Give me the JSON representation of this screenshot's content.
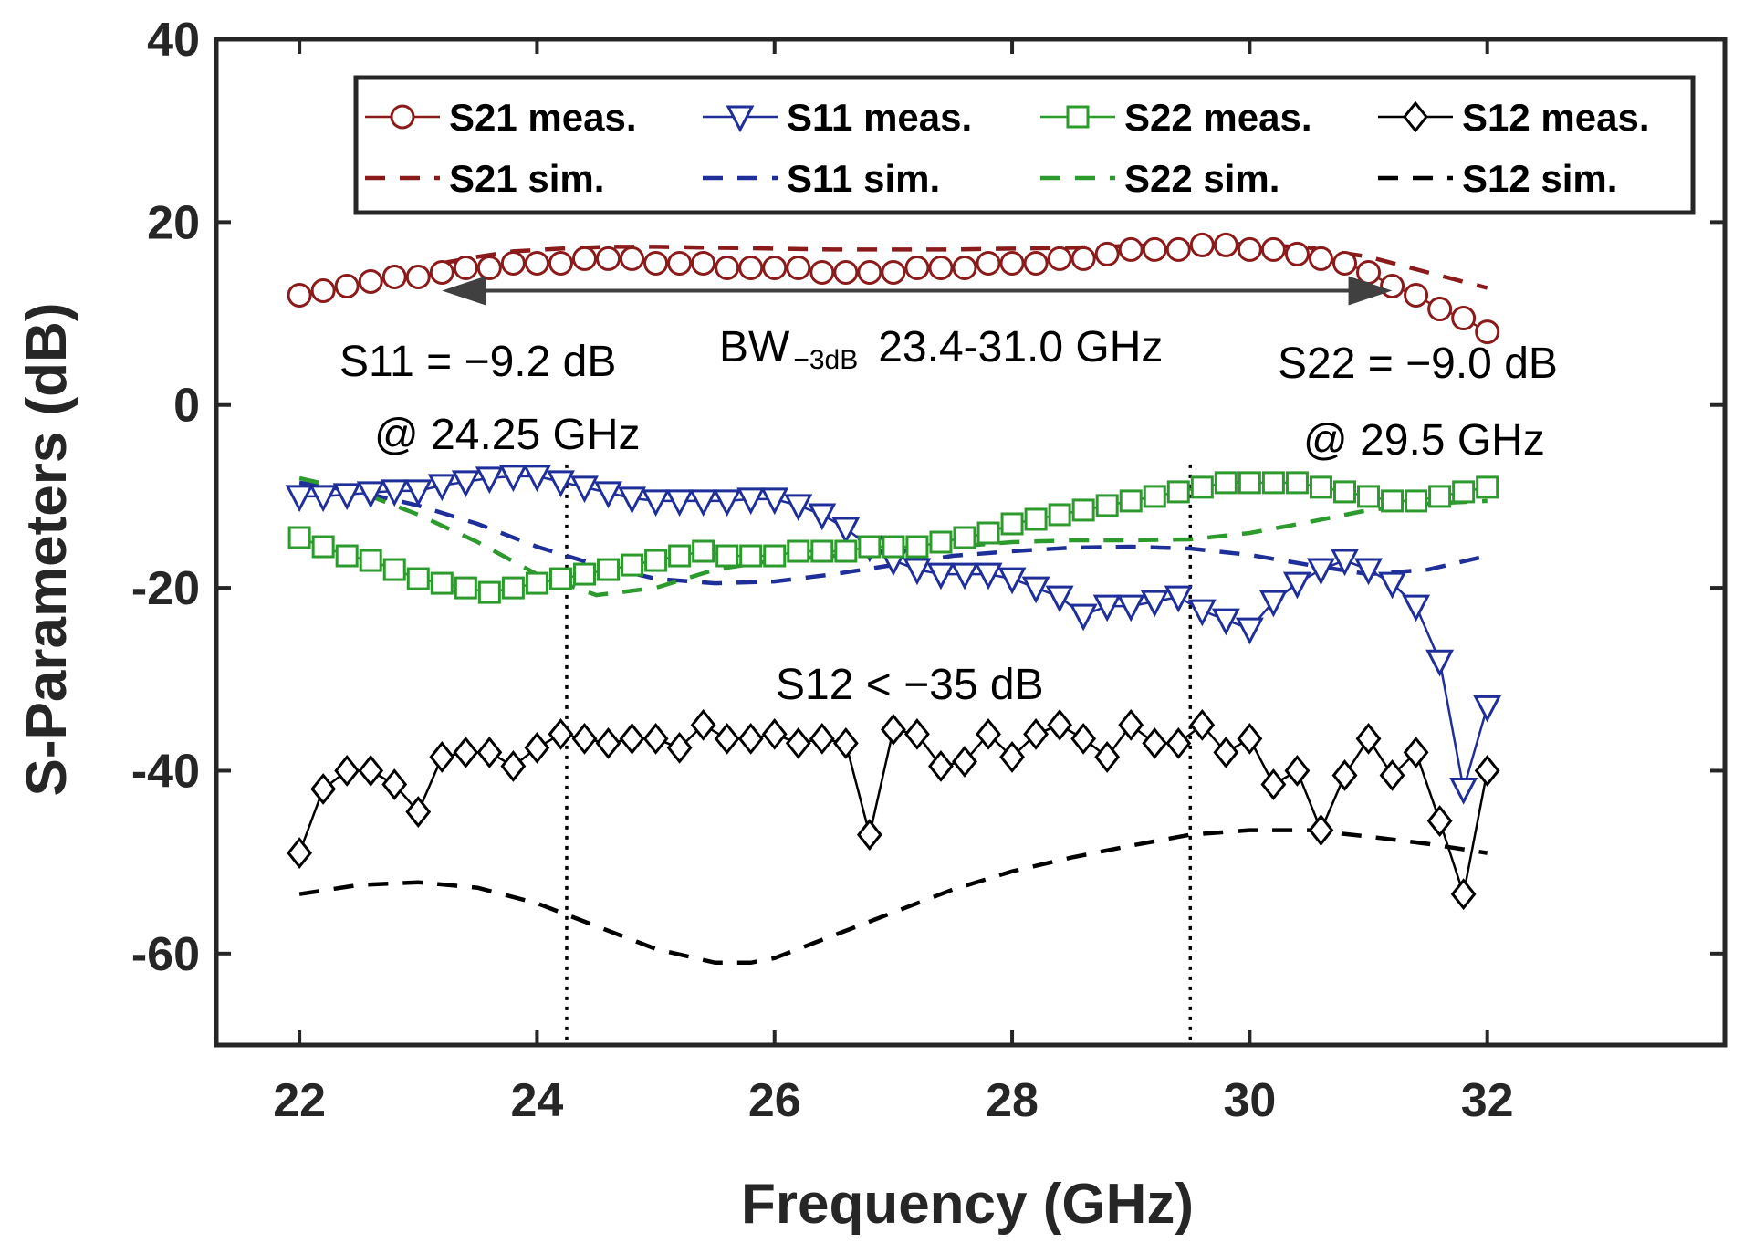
{
  "chart_data": {
    "type": "line",
    "title": "",
    "xlabel": "Frequency (GHz)",
    "ylabel": "S-Parameters (dB)",
    "xlim": [
      21.3,
      34.0
    ],
    "ylim": [
      -70,
      40
    ],
    "xticks": [
      22,
      24,
      26,
      28,
      30,
      32
    ],
    "yticks": [
      40,
      20,
      0,
      -20,
      -40,
      -60
    ],
    "xtick_labels": [
      "22",
      "24",
      "26",
      "28",
      "30",
      "32"
    ],
    "ytick_labels": [
      "40",
      "20",
      "0",
      "-20",
      "-40",
      "-60"
    ],
    "grid": false,
    "legend_position": "top",
    "series": [
      {
        "name": "S21 meas.",
        "style": "solid",
        "marker": "circle",
        "color": "#8b1a1a",
        "x": [
          22.0,
          22.2,
          22.4,
          22.6,
          22.8,
          23.0,
          23.2,
          23.4,
          23.6,
          23.8,
          24.0,
          24.2,
          24.4,
          24.6,
          24.8,
          25.0,
          25.2,
          25.4,
          25.6,
          25.8,
          26.0,
          26.2,
          26.4,
          26.6,
          26.8,
          27.0,
          27.2,
          27.4,
          27.6,
          27.8,
          28.0,
          28.2,
          28.4,
          28.6,
          28.8,
          29.0,
          29.2,
          29.4,
          29.6,
          29.8,
          30.0,
          30.2,
          30.4,
          30.6,
          30.8,
          31.0,
          31.2,
          31.4,
          31.6,
          31.8,
          32.0
        ],
        "y": [
          12.0,
          12.5,
          13.0,
          13.5,
          14.0,
          14.0,
          14.5,
          15.0,
          15.0,
          15.5,
          15.5,
          15.5,
          16.0,
          16.0,
          16.0,
          15.5,
          15.5,
          15.5,
          15.0,
          15.0,
          15.0,
          15.0,
          14.5,
          14.5,
          14.5,
          14.5,
          15.0,
          15.0,
          15.0,
          15.5,
          15.5,
          15.5,
          16.0,
          16.0,
          16.5,
          17.0,
          17.0,
          17.0,
          17.5,
          17.5,
          17.0,
          17.0,
          16.5,
          16.0,
          15.5,
          14.5,
          13.0,
          12.0,
          10.5,
          9.5,
          8.0
        ]
      },
      {
        "name": "S11 meas.",
        "style": "solid",
        "marker": "triangle-down",
        "color": "#1f2f9a",
        "x": [
          22.0,
          22.2,
          22.4,
          22.6,
          22.8,
          23.0,
          23.2,
          23.4,
          23.6,
          23.8,
          24.0,
          24.2,
          24.4,
          24.6,
          24.8,
          25.0,
          25.2,
          25.4,
          25.6,
          25.8,
          26.0,
          26.2,
          26.4,
          26.6,
          26.8,
          27.0,
          27.2,
          27.4,
          27.6,
          27.8,
          28.0,
          28.2,
          28.4,
          28.6,
          28.8,
          29.0,
          29.2,
          29.4,
          29.6,
          29.8,
          30.0,
          30.2,
          30.4,
          30.6,
          30.8,
          31.0,
          31.2,
          31.4,
          31.6,
          31.8,
          32.0
        ],
        "y": [
          -10.0,
          -10.0,
          -9.8,
          -9.6,
          -9.4,
          -9.4,
          -8.8,
          -8.4,
          -8.0,
          -7.8,
          -7.8,
          -8.4,
          -9.0,
          -9.6,
          -10.2,
          -10.5,
          -10.5,
          -10.5,
          -10.5,
          -10.3,
          -10.3,
          -11.0,
          -12.0,
          -13.5,
          -15.5,
          -17.0,
          -18.0,
          -18.5,
          -18.5,
          -18.5,
          -19.0,
          -20.0,
          -21.0,
          -23.0,
          -22.0,
          -22.0,
          -21.5,
          -21.0,
          -22.5,
          -23.5,
          -24.5,
          -21.5,
          -19.5,
          -18.0,
          -17.0,
          -18.0,
          -19.5,
          -22.0,
          -28.0,
          -42.0,
          -33.0
        ]
      },
      {
        "name": "S22 meas.",
        "style": "solid",
        "marker": "square",
        "color": "#2d9a2d",
        "x": [
          22.0,
          22.2,
          22.4,
          22.6,
          22.8,
          23.0,
          23.2,
          23.4,
          23.6,
          23.8,
          24.0,
          24.2,
          24.4,
          24.6,
          24.8,
          25.0,
          25.2,
          25.4,
          25.6,
          25.8,
          26.0,
          26.2,
          26.4,
          26.6,
          26.8,
          27.0,
          27.2,
          27.4,
          27.6,
          27.8,
          28.0,
          28.2,
          28.4,
          28.6,
          28.8,
          29.0,
          29.2,
          29.4,
          29.6,
          29.8,
          30.0,
          30.2,
          30.4,
          30.6,
          30.8,
          31.0,
          31.2,
          31.4,
          31.6,
          31.8,
          32.0
        ],
        "y": [
          -14.5,
          -15.5,
          -16.5,
          -17.0,
          -18.0,
          -19.0,
          -19.5,
          -20.0,
          -20.5,
          -20.0,
          -19.5,
          -19.0,
          -18.5,
          -18.0,
          -17.5,
          -17.0,
          -16.5,
          -16.0,
          -16.5,
          -16.5,
          -16.5,
          -16.0,
          -16.0,
          -16.0,
          -15.5,
          -15.5,
          -15.5,
          -15.0,
          -14.5,
          -14.0,
          -13.0,
          -12.5,
          -12.0,
          -11.5,
          -11.0,
          -10.5,
          -10.0,
          -9.5,
          -9.0,
          -8.5,
          -8.5,
          -8.5,
          -8.5,
          -9.0,
          -9.5,
          -10.0,
          -10.5,
          -10.5,
          -10.0,
          -9.5,
          -9.0
        ]
      },
      {
        "name": "S12 meas.",
        "style": "solid",
        "marker": "diamond",
        "color": "#000000",
        "x": [
          22.0,
          22.2,
          22.4,
          22.6,
          22.8,
          23.0,
          23.2,
          23.4,
          23.6,
          23.8,
          24.0,
          24.2,
          24.4,
          24.6,
          24.8,
          25.0,
          25.2,
          25.4,
          25.6,
          25.8,
          26.0,
          26.2,
          26.4,
          26.6,
          26.8,
          27.0,
          27.2,
          27.4,
          27.6,
          27.8,
          28.0,
          28.2,
          28.4,
          28.6,
          28.8,
          29.0,
          29.2,
          29.4,
          29.6,
          29.8,
          30.0,
          30.2,
          30.4,
          30.6,
          30.8,
          31.0,
          31.2,
          31.4,
          31.6,
          31.8,
          32.0
        ],
        "y": [
          -49,
          -42,
          -40,
          -40,
          -41.5,
          -44.5,
          -38.5,
          -38,
          -38,
          -39.5,
          -37.5,
          -36,
          -36.5,
          -37,
          -36.5,
          -36.5,
          -37.5,
          -35,
          -36.5,
          -36.5,
          -36,
          -37,
          -36.5,
          -37,
          -47,
          -35.5,
          -36,
          -39.5,
          -39,
          -36,
          -38.5,
          -36,
          -35,
          -36.5,
          -38.5,
          -35,
          -37,
          -37,
          -35,
          -38,
          -36.5,
          -41.5,
          -40,
          -46.5,
          -40.5,
          -36.5,
          -40.5,
          -38,
          -45.5,
          -53.5,
          -40
        ]
      },
      {
        "name": "S21 sim.",
        "style": "dashed",
        "marker": "none",
        "color": "#8b1a1a",
        "x": [
          23.2,
          23.5,
          23.8,
          24.2,
          24.6,
          25.0,
          25.5,
          26.0,
          26.5,
          27.0,
          27.5,
          28.0,
          28.5,
          29.0,
          29.5,
          30.0,
          30.5,
          31.0,
          31.5,
          32.0
        ],
        "y": [
          15.5,
          16.2,
          16.8,
          17.1,
          17.3,
          17.3,
          17.2,
          17.1,
          17.0,
          17.0,
          17.0,
          17.1,
          17.2,
          17.4,
          17.6,
          17.6,
          17.2,
          16.2,
          14.5,
          12.8
        ]
      },
      {
        "name": "S11 sim.",
        "style": "dashed",
        "marker": "none",
        "color": "#1f2f9a",
        "x": [
          22.0,
          22.5,
          23.0,
          23.5,
          24.0,
          24.5,
          25.0,
          25.5,
          26.0,
          26.5,
          27.0,
          27.5,
          28.0,
          28.5,
          29.0,
          29.5,
          30.0,
          30.5,
          31.0,
          31.5,
          32.0
        ],
        "y": [
          -8.5,
          -9.5,
          -11.0,
          -13.0,
          -15.5,
          -17.5,
          -19.0,
          -19.5,
          -19.3,
          -18.5,
          -17.5,
          -16.5,
          -16.0,
          -15.6,
          -15.5,
          -15.7,
          -16.4,
          -17.5,
          -18.5,
          -18.0,
          -16.5
        ]
      },
      {
        "name": "S22 sim.",
        "style": "dashed",
        "marker": "none",
        "color": "#2d9a2d",
        "x": [
          22.0,
          22.5,
          23.0,
          23.5,
          24.0,
          24.5,
          25.0,
          25.5,
          26.0,
          26.5,
          27.0,
          27.5,
          28.0,
          28.5,
          29.0,
          29.5,
          30.0,
          30.5,
          31.0,
          31.5,
          32.0
        ],
        "y": [
          -8.0,
          -9.5,
          -12.0,
          -15.0,
          -18.5,
          -20.8,
          -20.0,
          -18.0,
          -17.0,
          -16.5,
          -16.0,
          -15.5,
          -15.0,
          -14.8,
          -14.8,
          -14.7,
          -14.0,
          -12.8,
          -11.5,
          -10.8,
          -10.5
        ]
      },
      {
        "name": "S12 sim.",
        "style": "dashed",
        "marker": "none",
        "color": "#000000",
        "x": [
          22.0,
          22.5,
          23.0,
          23.5,
          24.0,
          24.5,
          25.0,
          25.5,
          25.8,
          26.0,
          26.5,
          27.0,
          27.5,
          28.0,
          28.5,
          29.0,
          29.5,
          30.0,
          30.5,
          31.0,
          31.5,
          32.0
        ],
        "y": [
          -53.5,
          -52.5,
          -52.2,
          -52.8,
          -54.5,
          -57.0,
          -59.5,
          -61.0,
          -61.0,
          -60.5,
          -58.0,
          -55.5,
          -53.0,
          -51.0,
          -49.5,
          -48.2,
          -47.0,
          -46.5,
          -46.5,
          -47.2,
          -48.0,
          -49.0
        ]
      }
    ],
    "annotations": {
      "bw_label_main": "BW",
      "bw_label_sub": "−3dB",
      "bw_range": "23.4-31.0 GHz",
      "bw_arrow_x": [
        23.2,
        31.2
      ],
      "bw_arrow_y": 12.5,
      "s11_line1": "S11  = −9.2 dB",
      "s11_line2": "@ 24.25 GHz",
      "s22_line1": "S22 = −9.0 dB",
      "s22_line2": "@ 29.5 GHz",
      "s12_note": "S12 < −35 dB",
      "vlines_x": [
        24.25,
        29.5
      ]
    }
  }
}
